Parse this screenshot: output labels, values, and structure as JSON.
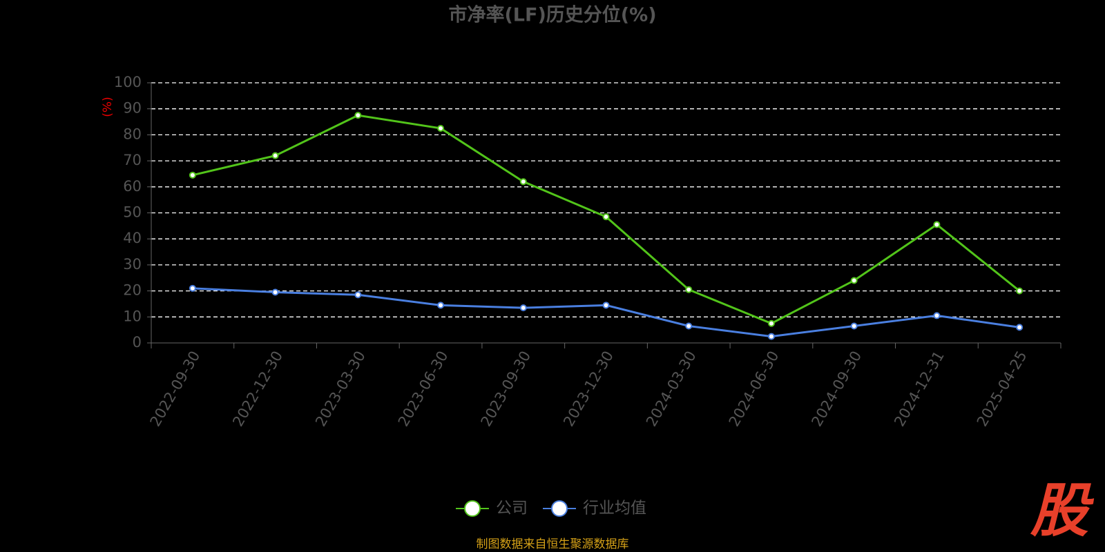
{
  "chart_data": {
    "type": "line",
    "title": "市净率(LF)历史分位(%)",
    "y_label": "(%)",
    "categories": [
      "2022-09-30",
      "2022-12-30",
      "2023-03-30",
      "2023-06-30",
      "2023-09-30",
      "2023-12-30",
      "2024-03-30",
      "2024-06-30",
      "2024-09-30",
      "2024-12-31",
      "2025-04-25"
    ],
    "series": [
      {
        "name": "公司",
        "color": "#52c41a",
        "values": [
          64.5,
          72,
          87.5,
          82.5,
          62,
          48.5,
          20.5,
          7.5,
          24,
          45.5,
          20
        ]
      },
      {
        "name": "行业均值",
        "color": "#4a7fe0",
        "values": [
          21,
          19.5,
          18.5,
          14.5,
          13.5,
          14.5,
          6.5,
          2.5,
          6.5,
          10.5,
          6
        ]
      }
    ],
    "ylim": [
      0,
      100
    ],
    "yticks": [
      0,
      10,
      20,
      30,
      40,
      50,
      60,
      70,
      80,
      90,
      100
    ],
    "grid": true,
    "legend": "bottom",
    "source": "制图数据来自恒生聚源数据库",
    "watermark": "股"
  }
}
